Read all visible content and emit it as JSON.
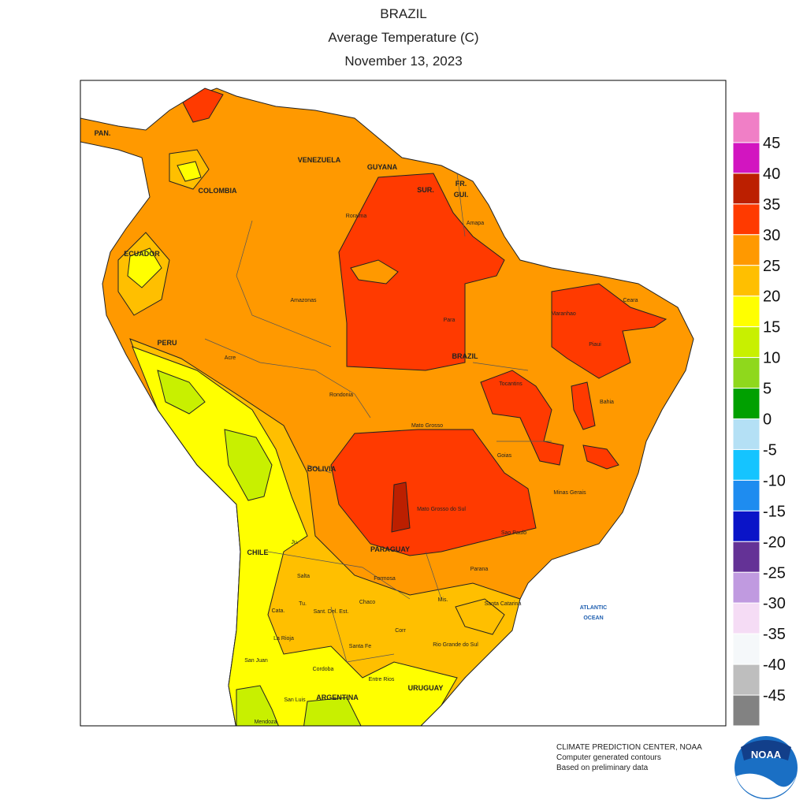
{
  "title": [
    "BRAZIL",
    "Average Temperature (C)",
    "November 13, 2023"
  ],
  "legend": {
    "labels": [
      45,
      40,
      35,
      30,
      25,
      20,
      15,
      10,
      5,
      0,
      -5,
      -10,
      -15,
      -20,
      -25,
      -30,
      -35,
      -40,
      -45
    ],
    "colors": [
      "#f07fc6",
      "#d215c0",
      "#bc1f00",
      "#ff3a00",
      "#ff9900",
      "#ffbf00",
      "#ffff00",
      "#c8f000",
      "#8fd81c",
      "#00a000",
      "#b4e0f5",
      "#15c4ff",
      "#1e8cf0",
      "#0a14c8",
      "#643296",
      "#c09ae0",
      "#f5dcf5",
      "#f5f8fa",
      "#bebebe",
      "#828282"
    ]
  },
  "places": [
    "PAN.",
    "VENEZUELA",
    "GUYANA",
    "SUR.",
    "FR.",
    "GUI.",
    "COLOMBIA",
    "ECUADOR",
    "PERU",
    "BRAZIL",
    "BOLIVIA",
    "PARAGUAY",
    "CHILE",
    "ARGENTINA",
    "URUGUAY",
    "Roraima",
    "Amapa",
    "Amazonas",
    "Para",
    "Maranhao",
    "Ceara",
    "Piaui",
    "Acre",
    "Rondonia",
    "Tocantins",
    "Bahia",
    "Mato Grosso",
    "Goias",
    "Minas Gerais",
    "Mato Grosso do Sul",
    "Sao Paulo",
    "Parana",
    "Santa Catarina",
    "Rio Grande do Sul",
    "Ju.",
    "Salta",
    "Formosa",
    "Chaco",
    "Cata.",
    "Tu.",
    "Sant. Del. Est.",
    "Mis.",
    "Corr",
    "La Rioja",
    "Santa Fe",
    "San Juan",
    "Cordoba",
    "Entre Rios",
    "San Luis",
    "Mendoza"
  ],
  "ocean": [
    "ATLANTIC",
    "OCEAN"
  ],
  "credits": [
    "CLIMATE PREDICTION CENTER, NOAA",
    "Computer generated contours",
    "Based on preliminary data"
  ],
  "logo": "NOAA"
}
